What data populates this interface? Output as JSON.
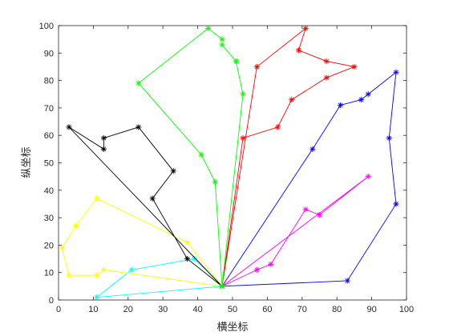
{
  "chart_data": {
    "type": "line",
    "title": "",
    "xlabel": "横坐标",
    "ylabel": "纵坐标",
    "xlim": [
      0,
      100
    ],
    "ylim": [
      0,
      100
    ],
    "xticks": [
      0,
      10,
      20,
      30,
      40,
      50,
      60,
      70,
      80,
      90,
      100
    ],
    "yticks": [
      0,
      10,
      20,
      30,
      40,
      50,
      60,
      70,
      80,
      90,
      100
    ],
    "grid": false,
    "marker": "asterisk",
    "depot": [
      47,
      5
    ],
    "series": [
      {
        "color": "#ff0000",
        "points": [
          [
            47,
            5
          ],
          [
            53,
            59
          ],
          [
            63,
            63
          ],
          [
            67,
            73
          ],
          [
            77,
            81
          ],
          [
            85,
            85
          ],
          [
            77,
            87
          ],
          [
            69,
            91
          ],
          [
            71,
            99
          ],
          [
            57,
            85
          ],
          [
            47,
            5
          ]
        ]
      },
      {
        "color": "#0000ff",
        "points": [
          [
            47,
            5
          ],
          [
            73,
            55
          ],
          [
            81,
            71
          ],
          [
            87,
            73
          ],
          [
            89,
            75
          ],
          [
            97,
            83
          ],
          [
            95,
            59
          ],
          [
            97,
            35
          ],
          [
            83,
            7
          ],
          [
            47,
            5
          ]
        ]
      },
      {
        "color": "#ff00ff",
        "points": [
          [
            47,
            5
          ],
          [
            89,
            45
          ],
          [
            75,
            31
          ],
          [
            71,
            33
          ],
          [
            61,
            13
          ],
          [
            57,
            11
          ],
          [
            47,
            5
          ]
        ]
      },
      {
        "color": "#00ffff",
        "points": [
          [
            47,
            5
          ],
          [
            39,
            15
          ],
          [
            21,
            11
          ],
          [
            11,
            1
          ],
          [
            47,
            5
          ]
        ]
      },
      {
        "color": "#ffff00",
        "points": [
          [
            47,
            5
          ],
          [
            37,
            21
          ],
          [
            11,
            37
          ],
          [
            5,
            27
          ],
          [
            1,
            19
          ],
          [
            3,
            9
          ],
          [
            11,
            9
          ],
          [
            13,
            11
          ],
          [
            47,
            5
          ]
        ]
      },
      {
        "color": "#000000",
        "points": [
          [
            47,
            5
          ],
          [
            37,
            15
          ],
          [
            27,
            37
          ],
          [
            33,
            47
          ],
          [
            23,
            63
          ],
          [
            13,
            59
          ],
          [
            13,
            55
          ],
          [
            3,
            63
          ],
          [
            47,
            5
          ]
        ]
      },
      {
        "color": "#00ff00",
        "points": [
          [
            47,
            5
          ],
          [
            45,
            43
          ],
          [
            41,
            53
          ],
          [
            23,
            79
          ],
          [
            43,
            99
          ],
          [
            47,
            95
          ],
          [
            47,
            93
          ],
          [
            51,
            87
          ],
          [
            53,
            75
          ],
          [
            47,
            5
          ]
        ]
      }
    ]
  }
}
